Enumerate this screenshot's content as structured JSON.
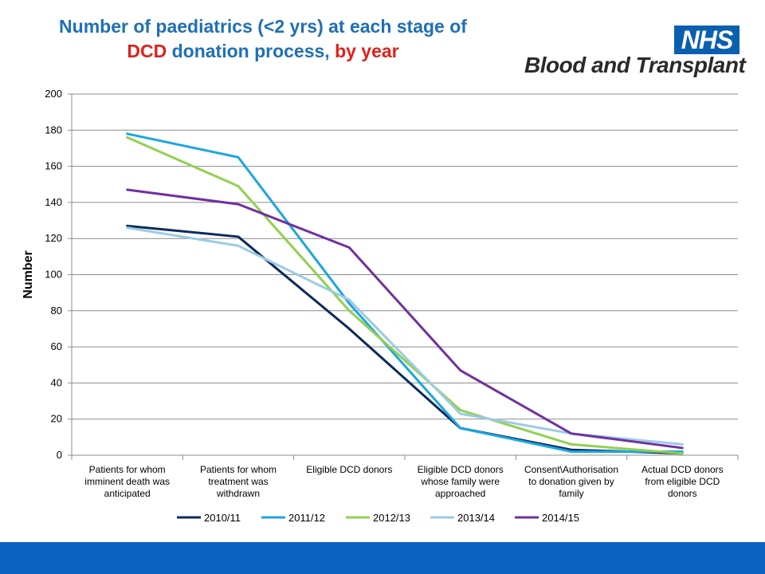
{
  "header": {
    "title_line1": "Number of paediatrics (<2 yrs) at each stage of",
    "title_line2_red1": "DCD",
    "title_line2_blue": " donation process, ",
    "title_line2_red2": "by year"
  },
  "logo": {
    "nhs": "NHS",
    "org": "Blood and Transplant",
    "nhs_blue": "#0b5fb0"
  },
  "colors": {
    "title_blue": "#1f6fb5",
    "title_red": "#e0201b",
    "footer_blue": "#0b62c1"
  },
  "chart_data": {
    "type": "line",
    "ylabel": "Number",
    "ylim": [
      0,
      200
    ],
    "yticks": [
      0,
      20,
      40,
      60,
      80,
      100,
      120,
      140,
      160,
      180,
      200
    ],
    "grid": true,
    "legend_position": "bottom",
    "categories": [
      [
        "Patients for whom",
        "imminent death was",
        "anticipated"
      ],
      [
        "Patients for whom",
        "treatment was",
        "withdrawn"
      ],
      [
        "Eligible DCD donors"
      ],
      [
        "Eligible DCD donors",
        "whose family were",
        "approached"
      ],
      [
        "Consent\\Authorisation",
        "to donation given by",
        "family"
      ],
      [
        "Actual DCD donors",
        "from eligible DCD",
        "donors"
      ]
    ],
    "series": [
      {
        "name": "2010/11",
        "color": "#0d2a5c",
        "values": [
          127,
          121,
          70,
          15,
          3,
          1
        ]
      },
      {
        "name": "2011/12",
        "color": "#1aa6e0",
        "values": [
          178,
          165,
          84,
          15,
          2,
          2
        ]
      },
      {
        "name": "2012/13",
        "color": "#92d050",
        "values": [
          176,
          149,
          80,
          25,
          6,
          1
        ]
      },
      {
        "name": "2013/14",
        "color": "#9ccbe4",
        "values": [
          126,
          116,
          86,
          23,
          12,
          6
        ]
      },
      {
        "name": "2014/15",
        "color": "#7030a0",
        "values": [
          147,
          139,
          115,
          47,
          12,
          4
        ]
      }
    ]
  }
}
